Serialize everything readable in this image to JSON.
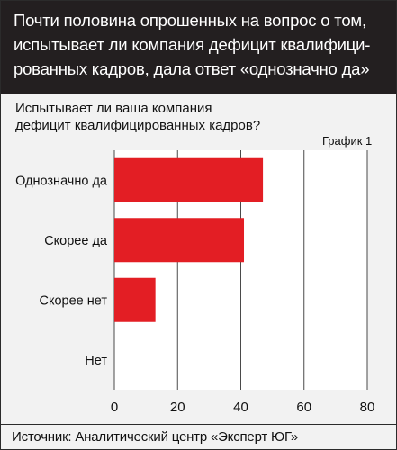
{
  "header": {
    "title_lines": [
      "Почти половина опрошенных на вопрос о том,",
      "испытывает ли компания дефицит квалифици-",
      "рованных кадров, дала ответ «однозначно да»"
    ]
  },
  "question_lines": [
    "Испытывает ли ваша компания",
    "дефицит квалифицированных кадров?"
  ],
  "graph_label": "График 1",
  "footer": {
    "source": "Источник: Аналитический центр «Эксперт ЮГ»"
  },
  "colors": {
    "bar": "#e31e24",
    "header_bg": "#231f20",
    "background": "#f2f2f2"
  },
  "chart_data": {
    "type": "bar",
    "orientation": "horizontal",
    "categories": [
      "Однозначно да",
      "Скорее да",
      "Скорее нет",
      "Нет"
    ],
    "values": [
      47,
      41,
      13,
      0
    ],
    "xlim": [
      0,
      80
    ],
    "xticks": [
      "0",
      "20",
      "40",
      "60",
      "80"
    ],
    "grid": true
  }
}
